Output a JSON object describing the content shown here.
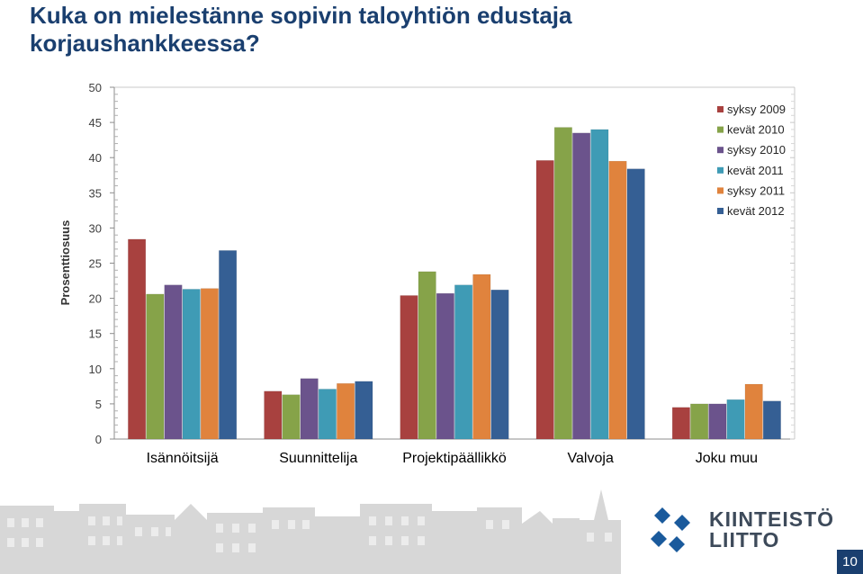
{
  "title": "Kuka on mielestänne sopivin taloyhtiön edustaja korjaushankkeessa?",
  "chart_data": {
    "type": "bar",
    "ylabel": "Prosenttiosuus",
    "ylim": [
      0,
      50
    ],
    "yticks": [
      0,
      5,
      10,
      15,
      20,
      25,
      30,
      35,
      40,
      45,
      50
    ],
    "grid": false,
    "legend_position": "top-right",
    "categories": [
      "Isännöitsijä",
      "Suunnittelija",
      "Projektipäällikkö",
      "Valvoja",
      "Joku muu"
    ],
    "series": [
      {
        "name": "syksy 2009",
        "color": "#a8413f",
        "values": [
          28.4,
          6.8,
          20.4,
          39.6,
          4.5
        ]
      },
      {
        "name": "kevät 2010",
        "color": "#86a349",
        "values": [
          20.6,
          6.3,
          23.8,
          44.3,
          5.0
        ]
      },
      {
        "name": "syksy 2010",
        "color": "#6b538c",
        "values": [
          21.9,
          8.6,
          20.7,
          43.5,
          5.0
        ]
      },
      {
        "name": "kevät 2011",
        "color": "#3f9bb5",
        "values": [
          21.3,
          7.1,
          21.9,
          44.0,
          5.6
        ]
      },
      {
        "name": "syksy 2011",
        "color": "#e0833d",
        "values": [
          21.4,
          7.9,
          23.4,
          39.5,
          7.8
        ]
      },
      {
        "name": "kevät 2012",
        "color": "#355f94",
        "values": [
          26.8,
          8.2,
          21.2,
          38.4,
          5.4
        ]
      }
    ]
  },
  "logo": {
    "line1": "KIINTEISTÖ",
    "line2": "LIITTO",
    "text_color": "#3d4a5a",
    "mark_color": "#1a5a9c"
  },
  "footer": {
    "page_number": "10",
    "page_color": "#1a3f6f"
  }
}
